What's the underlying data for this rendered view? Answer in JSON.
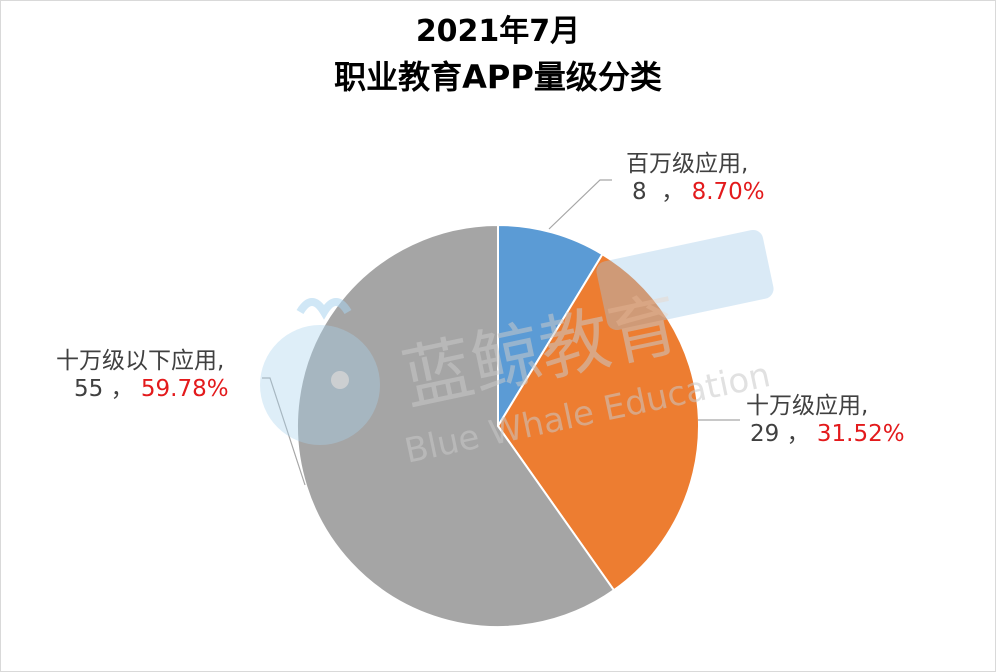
{
  "chart_data": {
    "type": "pie",
    "title_line1": "2021年7月",
    "title_line2": "职业教育APP量级分类",
    "slices": [
      {
        "name": "百万级应用",
        "value": 8,
        "percent": "8.70%",
        "color": "#5b9bd5"
      },
      {
        "name": "十万级应用",
        "value": 29,
        "percent": "31.52%",
        "color": "#ed7d31"
      },
      {
        "name": "十万级以下应用",
        "value": 55,
        "percent": "59.78%",
        "color": "#a5a5a5"
      }
    ]
  },
  "watermark": {
    "cn": "蓝鲸教育",
    "en": "Blue Whale Education"
  }
}
